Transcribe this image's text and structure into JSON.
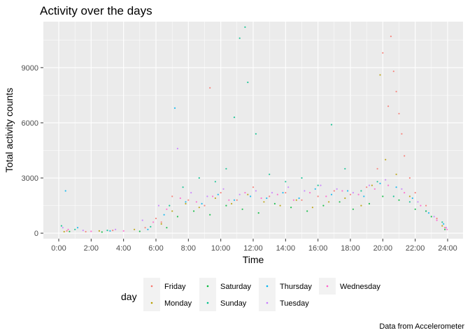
{
  "chart_data": {
    "type": "scatter",
    "title": "Activity over the days",
    "xlabel": "Time",
    "ylabel": "Total activity counts",
    "caption": "Data from Accelerometer",
    "legend_title": "day",
    "legend_position": "bottom",
    "grid": true,
    "xlim": [
      0,
      1440
    ],
    "ylim": [
      -300,
      11500
    ],
    "x_ticks": [
      {
        "value": 0,
        "label": "0:00"
      },
      {
        "value": 120,
        "label": "2:00"
      },
      {
        "value": 240,
        "label": "4:00"
      },
      {
        "value": 360,
        "label": "6:00"
      },
      {
        "value": 480,
        "label": "8:00"
      },
      {
        "value": 600,
        "label": "10:00"
      },
      {
        "value": 720,
        "label": "12:00"
      },
      {
        "value": 840,
        "label": "14:00"
      },
      {
        "value": 960,
        "label": "16:00"
      },
      {
        "value": 1080,
        "label": "18:00"
      },
      {
        "value": 1200,
        "label": "20:00"
      },
      {
        "value": 1320,
        "label": "22:00"
      },
      {
        "value": 1440,
        "label": "24:00"
      }
    ],
    "y_ticks": [
      {
        "value": 0,
        "label": "0"
      },
      {
        "value": 3000,
        "label": "3000"
      },
      {
        "value": 6000,
        "label": "6000"
      },
      {
        "value": 9000,
        "label": "9000"
      }
    ],
    "series": [
      {
        "name": "Friday",
        "color": "#F8766D",
        "values": [
          [
            30,
            120
          ],
          [
            100,
            80
          ],
          [
            200,
            150
          ],
          [
            320,
            300
          ],
          [
            360,
            800
          ],
          [
            380,
            600
          ],
          [
            420,
            2000
          ],
          [
            480,
            1800
          ],
          [
            540,
            1500
          ],
          [
            560,
            7900
          ],
          [
            600,
            2200
          ],
          [
            660,
            1800
          ],
          [
            720,
            2500
          ],
          [
            780,
            2000
          ],
          [
            840,
            2200
          ],
          [
            900,
            1800
          ],
          [
            960,
            2000
          ],
          [
            1020,
            2300
          ],
          [
            1080,
            2100
          ],
          [
            1140,
            2500
          ],
          [
            1180,
            3500
          ],
          [
            1200,
            9800
          ],
          [
            1220,
            6900
          ],
          [
            1230,
            10700
          ],
          [
            1240,
            8800
          ],
          [
            1250,
            7700
          ],
          [
            1260,
            6500
          ],
          [
            1270,
            5400
          ],
          [
            1280,
            4200
          ],
          [
            1300,
            3000
          ],
          [
            1320,
            2200
          ],
          [
            1360,
            1500
          ],
          [
            1400,
            800
          ],
          [
            1430,
            300
          ]
        ]
      },
      {
        "name": "Monday",
        "color": "#B79F00",
        "values": [
          [
            20,
            80
          ],
          [
            150,
            120
          ],
          [
            280,
            200
          ],
          [
            380,
            500
          ],
          [
            420,
            1200
          ],
          [
            470,
            1600
          ],
          [
            520,
            1400
          ],
          [
            580,
            1900
          ],
          [
            640,
            1600
          ],
          [
            700,
            2100
          ],
          [
            760,
            1700
          ],
          [
            820,
            1500
          ],
          [
            880,
            1800
          ],
          [
            940,
            1400
          ],
          [
            1000,
            1700
          ],
          [
            1060,
            1900
          ],
          [
            1120,
            1500
          ],
          [
            1160,
            2600
          ],
          [
            1190,
            8600
          ],
          [
            1210,
            4000
          ],
          [
            1250,
            3200
          ],
          [
            1300,
            2000
          ],
          [
            1360,
            1200
          ],
          [
            1420,
            400
          ]
        ]
      },
      {
        "name": "Saturday",
        "color": "#00BA38",
        "values": [
          [
            40,
            90
          ],
          [
            160,
            60
          ],
          [
            300,
            100
          ],
          [
            400,
            300
          ],
          [
            440,
            900
          ],
          [
            500,
            1200
          ],
          [
            560,
            1000
          ],
          [
            620,
            1500
          ],
          [
            680,
            1300
          ],
          [
            740,
            1100
          ],
          [
            800,
            1600
          ],
          [
            860,
            1400
          ],
          [
            920,
            1200
          ],
          [
            980,
            1500
          ],
          [
            1040,
            1700
          ],
          [
            1090,
            1300
          ],
          [
            1150,
            1600
          ],
          [
            1200,
            2000
          ],
          [
            1260,
            1800
          ],
          [
            1320,
            1300
          ],
          [
            1380,
            900
          ],
          [
            1430,
            200
          ]
        ]
      },
      {
        "name": "Sunday",
        "color": "#00C08B",
        "values": [
          [
            10,
            400
          ],
          [
            60,
            200
          ],
          [
            180,
            150
          ],
          [
            340,
            350
          ],
          [
            410,
            1500
          ],
          [
            460,
            2500
          ],
          [
            520,
            3000
          ],
          [
            580,
            2800
          ],
          [
            620,
            3500
          ],
          [
            650,
            6300
          ],
          [
            670,
            10600
          ],
          [
            690,
            11200
          ],
          [
            700,
            8200
          ],
          [
            730,
            5400
          ],
          [
            780,
            3200
          ],
          [
            840,
            2800
          ],
          [
            900,
            3000
          ],
          [
            960,
            2600
          ],
          [
            1010,
            5900
          ],
          [
            1060,
            3500
          ],
          [
            1120,
            2300
          ],
          [
            1180,
            2800
          ],
          [
            1240,
            2000
          ],
          [
            1300,
            1700
          ],
          [
            1360,
            1200
          ],
          [
            1420,
            600
          ]
        ]
      },
      {
        "name": "Thursday",
        "color": "#00B4F0",
        "values": [
          [
            25,
            2300
          ],
          [
            70,
            300
          ],
          [
            190,
            120
          ],
          [
            330,
            200
          ],
          [
            390,
            1000
          ],
          [
            430,
            6800
          ],
          [
            470,
            1700
          ],
          [
            530,
            1600
          ],
          [
            590,
            2100
          ],
          [
            650,
            1800
          ],
          [
            710,
            2000
          ],
          [
            770,
            1900
          ],
          [
            830,
            2200
          ],
          [
            890,
            1900
          ],
          [
            950,
            2400
          ],
          [
            1010,
            2100
          ],
          [
            1070,
            2300
          ],
          [
            1130,
            2000
          ],
          [
            1190,
            2700
          ],
          [
            1250,
            2500
          ],
          [
            1310,
            1900
          ],
          [
            1370,
            1100
          ],
          [
            1425,
            500
          ]
        ]
      },
      {
        "name": "Tuesday",
        "color": "#C77CFF",
        "values": [
          [
            15,
            300
          ],
          [
            90,
            150
          ],
          [
            210,
            200
          ],
          [
            310,
            700
          ],
          [
            370,
            1500
          ],
          [
            440,
            4600
          ],
          [
            490,
            2200
          ],
          [
            550,
            2000
          ],
          [
            610,
            2400
          ],
          [
            670,
            2100
          ],
          [
            730,
            2300
          ],
          [
            790,
            2200
          ],
          [
            850,
            2500
          ],
          [
            910,
            2300
          ],
          [
            970,
            2600
          ],
          [
            1030,
            2400
          ],
          [
            1090,
            2200
          ],
          [
            1150,
            2600
          ],
          [
            1210,
            2900
          ],
          [
            1270,
            2400
          ],
          [
            1330,
            1700
          ],
          [
            1390,
            900
          ],
          [
            1435,
            300
          ]
        ]
      },
      {
        "name": "Wednesday",
        "color": "#FF61CC",
        "values": [
          [
            35,
            200
          ],
          [
            120,
            100
          ],
          [
            240,
            120
          ],
          [
            350,
            600
          ],
          [
            400,
            1300
          ],
          [
            450,
            1900
          ],
          [
            510,
            1700
          ],
          [
            570,
            2000
          ],
          [
            630,
            1800
          ],
          [
            690,
            2200
          ],
          [
            750,
            1900
          ],
          [
            810,
            2100
          ],
          [
            870,
            1800
          ],
          [
            930,
            2200
          ],
          [
            990,
            2000
          ],
          [
            1050,
            2300
          ],
          [
            1110,
            2100
          ],
          [
            1170,
            2400
          ],
          [
            1220,
            2600
          ],
          [
            1280,
            2200
          ],
          [
            1340,
            1500
          ],
          [
            1400,
            700
          ],
          [
            1438,
            200
          ]
        ]
      }
    ]
  }
}
